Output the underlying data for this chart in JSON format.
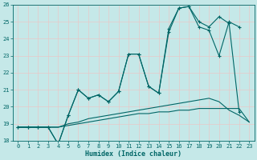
{
  "xlabel": "Humidex (Indice chaleur)",
  "xlim": [
    -0.5,
    23.5
  ],
  "ylim": [
    18,
    26
  ],
  "yticks": [
    18,
    19,
    20,
    21,
    22,
    23,
    24,
    25,
    26
  ],
  "xticks": [
    0,
    1,
    2,
    3,
    4,
    5,
    6,
    7,
    8,
    9,
    10,
    11,
    12,
    13,
    14,
    15,
    16,
    17,
    18,
    19,
    20,
    21,
    22,
    23
  ],
  "bg_color": "#c5e8e8",
  "grid_color": "#e8c8c8",
  "line_color": "#006666",
  "line1_x": [
    0,
    1,
    2,
    3,
    4,
    5,
    6,
    7,
    8,
    9,
    10,
    11,
    12,
    13,
    14,
    15,
    16,
    17,
    18,
    19,
    20,
    21,
    22,
    23
  ],
  "line1_y": [
    18.8,
    18.8,
    18.8,
    18.8,
    18.8,
    18.9,
    19.0,
    19.1,
    19.2,
    19.3,
    19.4,
    19.5,
    19.6,
    19.6,
    19.7,
    19.7,
    19.8,
    19.8,
    19.9,
    19.9,
    19.9,
    19.9,
    19.9,
    19.1
  ],
  "line2_x": [
    0,
    1,
    2,
    3,
    4,
    5,
    6,
    7,
    8,
    9,
    10,
    11,
    12,
    13,
    14,
    15,
    16,
    17,
    18,
    19,
    20,
    21,
    22,
    23
  ],
  "line2_y": [
    18.8,
    18.8,
    18.8,
    18.8,
    18.8,
    19.0,
    19.1,
    19.3,
    19.4,
    19.5,
    19.6,
    19.7,
    19.8,
    19.9,
    20.0,
    20.1,
    20.2,
    20.3,
    20.4,
    20.5,
    20.3,
    19.8,
    19.5,
    19.1
  ],
  "line3_x": [
    0,
    1,
    2,
    3,
    4,
    5,
    6,
    7,
    8,
    9,
    10,
    11,
    12,
    13,
    14,
    15,
    16,
    17,
    18,
    19,
    20,
    21,
    22,
    23
  ],
  "line3_y": [
    18.8,
    18.8,
    18.8,
    18.8,
    17.8,
    19.5,
    21.0,
    20.5,
    20.7,
    20.3,
    20.9,
    23.1,
    23.1,
    21.2,
    20.8,
    24.6,
    25.8,
    25.9,
    25.0,
    24.7,
    25.3,
    24.9,
    19.7,
    null
  ],
  "line4_x": [
    0,
    1,
    2,
    3,
    4,
    5,
    6,
    7,
    8,
    9,
    10,
    11,
    12,
    13,
    14,
    15,
    16,
    17,
    18,
    19,
    20,
    21,
    22,
    23
  ],
  "line4_y": [
    18.8,
    18.8,
    18.8,
    18.8,
    17.8,
    19.5,
    21.0,
    20.5,
    20.7,
    20.3,
    20.9,
    23.1,
    23.1,
    21.2,
    20.8,
    24.4,
    25.8,
    25.9,
    24.7,
    24.5,
    23.0,
    25.0,
    24.7,
    null
  ]
}
